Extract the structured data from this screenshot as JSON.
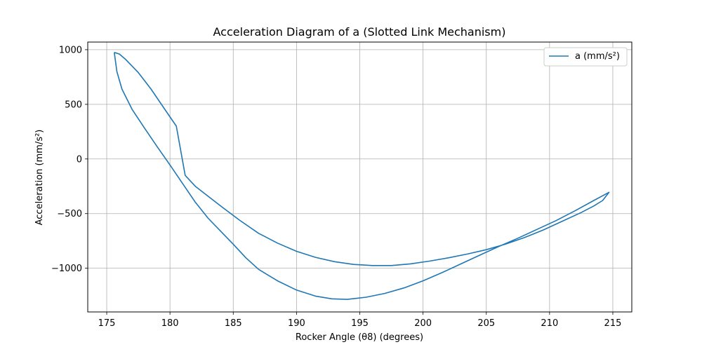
{
  "chart_data": {
    "type": "line",
    "title": "Acceleration Diagram of a (Slotted Link Mechanism)",
    "xlabel": "Rocker Angle (θ8) (degrees)",
    "ylabel": "Acceleration (mm/s²)",
    "xlim": [
      173.5,
      216.5
    ],
    "ylim": [
      -1400,
      1070
    ],
    "xticks": [
      175,
      180,
      185,
      190,
      195,
      200,
      205,
      210,
      215
    ],
    "yticks": [
      1000,
      500,
      0,
      -500,
      -1000
    ],
    "ytick_labels": [
      "1000",
      "500",
      "0",
      "−500",
      "−1000"
    ],
    "grid": true,
    "legend": "top-right",
    "series": [
      {
        "name": "a (mm/s²)",
        "color": "#1f77b4",
        "points": [
          [
            175.6,
            975
          ],
          [
            176.0,
            960
          ],
          [
            176.5,
            910
          ],
          [
            177.5,
            790
          ],
          [
            178.5,
            640
          ],
          [
            179.5,
            470
          ],
          [
            180.5,
            300
          ],
          [
            181.2,
            -150
          ],
          [
            182.0,
            -250
          ],
          [
            183.0,
            -340
          ],
          [
            184.0,
            -430
          ],
          [
            185.5,
            -560
          ],
          [
            187.0,
            -680
          ],
          [
            188.5,
            -770
          ],
          [
            190.0,
            -845
          ],
          [
            191.5,
            -900
          ],
          [
            193.0,
            -940
          ],
          [
            194.5,
            -965
          ],
          [
            196.0,
            -975
          ],
          [
            197.5,
            -975
          ],
          [
            199.0,
            -960
          ],
          [
            200.5,
            -935
          ],
          [
            202.0,
            -905
          ],
          [
            203.5,
            -870
          ],
          [
            205.0,
            -830
          ],
          [
            206.5,
            -780
          ],
          [
            208.0,
            -720
          ],
          [
            209.5,
            -650
          ],
          [
            211.0,
            -570
          ],
          [
            212.5,
            -490
          ],
          [
            213.5,
            -430
          ],
          [
            214.2,
            -380
          ],
          [
            214.7,
            -305
          ],
          [
            213.5,
            -380
          ],
          [
            212.0,
            -475
          ],
          [
            210.5,
            -565
          ],
          [
            209.0,
            -645
          ],
          [
            207.5,
            -725
          ],
          [
            206.0,
            -800
          ],
          [
            204.5,
            -880
          ],
          [
            203.0,
            -960
          ],
          [
            201.5,
            -1040
          ],
          [
            200.0,
            -1115
          ],
          [
            198.5,
            -1180
          ],
          [
            197.0,
            -1230
          ],
          [
            195.5,
            -1265
          ],
          [
            194.0,
            -1285
          ],
          [
            192.8,
            -1280
          ],
          [
            191.5,
            -1255
          ],
          [
            190.0,
            -1200
          ],
          [
            188.5,
            -1115
          ],
          [
            187.0,
            -1010
          ],
          [
            186.0,
            -905
          ],
          [
            185.0,
            -780
          ],
          [
            184.0,
            -660
          ],
          [
            183.0,
            -540
          ],
          [
            182.0,
            -395
          ],
          [
            181.0,
            -225
          ],
          [
            180.0,
            -55
          ],
          [
            179.0,
            110
          ],
          [
            178.0,
            280
          ],
          [
            177.0,
            455
          ],
          [
            176.2,
            640
          ],
          [
            175.8,
            800
          ],
          [
            175.6,
            975
          ]
        ]
      }
    ]
  }
}
